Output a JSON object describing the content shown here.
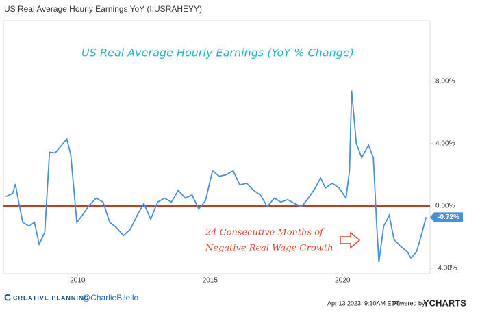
{
  "chart_data": {
    "type": "line",
    "title": "US Real Average Hourly Earnings YoY (I:USRAHEYY)",
    "subtitle": "US Real Average Hourly Earnings (YoY % Change)",
    "annotations": [
      "24 Consecutive Months of",
      "Negative Real Wage Growth"
    ],
    "x": [
      2007.29,
      2007.55,
      2007.65,
      2007.8,
      2007.93,
      2008.17,
      2008.37,
      2008.55,
      2008.76,
      2008.94,
      2009.15,
      2009.4,
      2009.59,
      2009.74,
      2009.97,
      2010.18,
      2010.44,
      2010.7,
      2010.96,
      2011.21,
      2011.47,
      2011.73,
      2011.99,
      2012.25,
      2012.5,
      2012.76,
      2013.02,
      2013.28,
      2013.54,
      2013.8,
      2014.06,
      2014.32,
      2014.57,
      2014.83,
      2015.09,
      2015.35,
      2015.61,
      2015.87,
      2016.12,
      2016.38,
      2016.64,
      2016.9,
      2017.16,
      2017.42,
      2017.67,
      2017.93,
      2018.19,
      2018.45,
      2018.71,
      2018.97,
      2019.17,
      2019.35,
      2019.61,
      2019.87,
      2020.13,
      2020.26,
      2020.34,
      2020.52,
      2020.72,
      2020.98,
      2021.16,
      2021.29,
      2021.37,
      2021.55,
      2021.76,
      2021.94,
      2022.2,
      2022.45,
      2022.58,
      2022.79,
      2022.97,
      2023.15
    ],
    "values": [
      0.6,
      0.8,
      1.4,
      0.05,
      -1.05,
      -1.3,
      -1.05,
      -2.45,
      -1.7,
      3.45,
      3.4,
      3.9,
      4.3,
      3.3,
      -1.05,
      -0.6,
      0.05,
      0.5,
      0.25,
      -1.05,
      -1.4,
      -1.9,
      -1.5,
      -0.6,
      0.15,
      -0.85,
      0.25,
      0.5,
      0.25,
      1.0,
      0.5,
      0.7,
      -0.2,
      0.35,
      2.25,
      1.9,
      2.0,
      2.25,
      1.35,
      1.45,
      1.0,
      0.7,
      -0.05,
      0.5,
      0.25,
      0.4,
      0.15,
      -0.05,
      0.5,
      1.15,
      1.8,
      1.15,
      1.45,
      1.15,
      0.5,
      2.25,
      7.4,
      4.0,
      3.1,
      3.9,
      3.1,
      -1.3,
      -3.6,
      -1.3,
      -0.6,
      -2.15,
      -2.6,
      -2.95,
      -3.35,
      -2.95,
      -1.9,
      -0.72
    ],
    "last_value_label": "-0.72%",
    "color": "#4a90d9",
    "zero_line_color": "#b0452a",
    "xlim": [
      2007.2,
      2023.3
    ],
    "xticks": [
      2010,
      2015,
      2020
    ],
    "ylim": [
      -4.35,
      11.9
    ],
    "yticks": [
      {
        "value": 8,
        "label": "8.00%"
      },
      {
        "value": 4,
        "label": "4.00%"
      },
      {
        "value": 0,
        "label": "0.00%"
      },
      {
        "value": -4,
        "label": "-4.00%"
      }
    ]
  },
  "footer": {
    "brand": "CREATIVE PLANNING",
    "handle": "@CharlieBilello",
    "timestamp": "Apr 13 2023, 9:10AM EDT.",
    "powered": "Powered by",
    "logo": "YCHARTS"
  }
}
